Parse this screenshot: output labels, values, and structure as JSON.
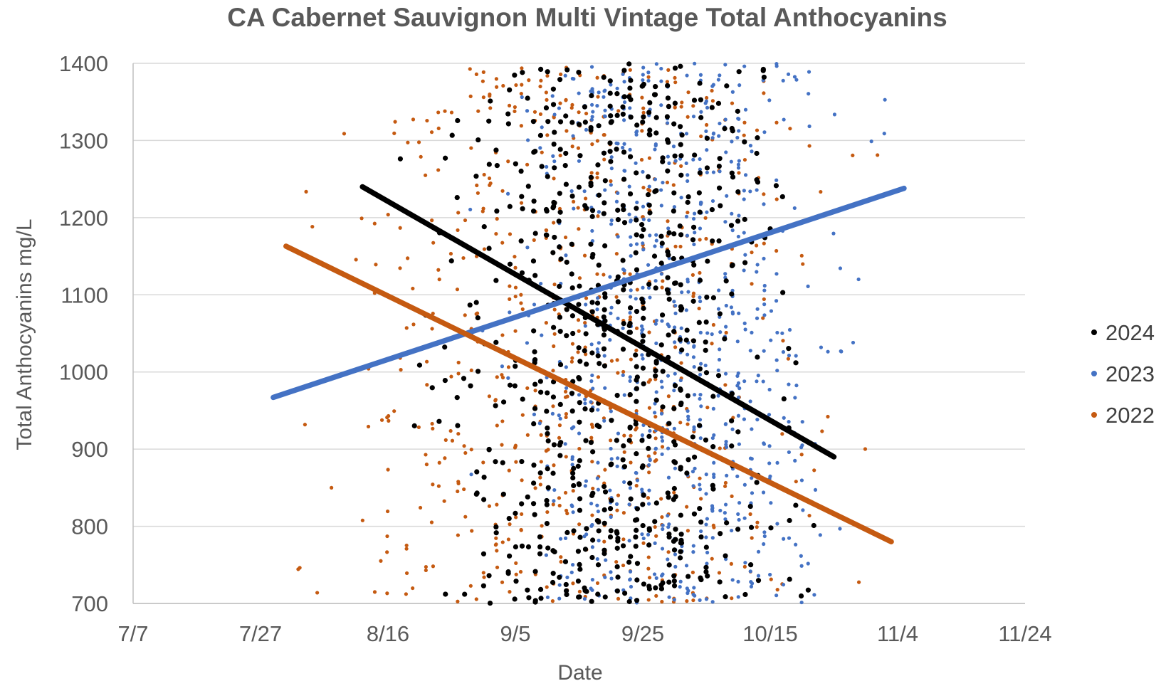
{
  "chart_data": {
    "type": "scatter",
    "title": "CA Cabernet Sauvignon Multi Vintage Total Anthocyanins",
    "xlabel": "Date",
    "ylabel": "Total Anthocyanins mg/L",
    "x_ticks": [
      "7/7",
      "7/27",
      "8/16",
      "9/5",
      "9/25",
      "10/15",
      "11/4",
      "11/24"
    ],
    "y_ticks": [
      "700",
      "800",
      "900",
      "1000",
      "1100",
      "1200",
      "1300",
      "1400"
    ],
    "ylim": [
      700,
      1400
    ],
    "xlim": [
      "7/7",
      "11/24"
    ],
    "grid": "horizontal",
    "legend_position": "right",
    "series": [
      {
        "name": "2024",
        "color": "#000000",
        "x_range": [
          "8/18",
          "10/25"
        ],
        "y_range": [
          700,
          1400
        ],
        "point_count": 700,
        "trendline": {
          "x": [
            "8/12",
            "10/25"
          ],
          "y": [
            1240,
            890
          ]
        }
      },
      {
        "name": "2023",
        "color": "#4472C4",
        "x_range": [
          "8/28",
          "11/2"
        ],
        "y_range": [
          700,
          1400
        ],
        "point_count": 750,
        "trendline": {
          "x": [
            "7/29",
            "11/5"
          ],
          "y": [
            967,
            1238
          ]
        }
      },
      {
        "name": "2022",
        "color": "#C55A11",
        "x_range": [
          "7/30",
          "11/1"
        ],
        "y_range": [
          700,
          1400
        ],
        "point_count": 650,
        "trendline": {
          "x": [
            "7/31",
            "11/3"
          ],
          "y": [
            1163,
            780
          ]
        }
      }
    ]
  }
}
